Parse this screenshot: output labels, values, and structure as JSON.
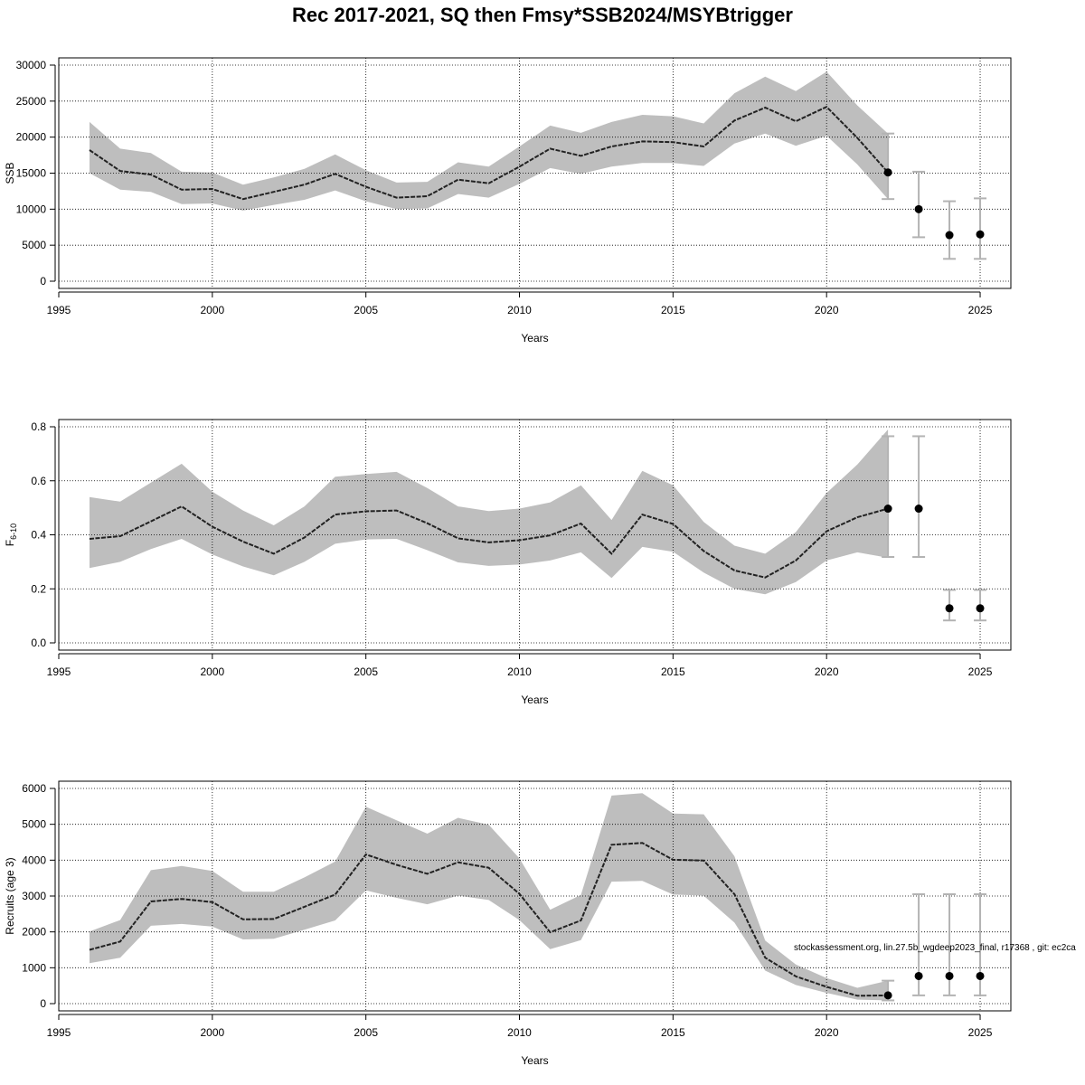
{
  "title": "Rec 2017-2021, SQ then Fmsy*SSB2024/MSYBtrigger",
  "footnote": "stockassessment.org, lin.27.5b_wgdeep2023_final, r17368 , git: ec2ca",
  "colors": {
    "band": "#bebebe",
    "errorbar": "#b3b3b3",
    "line": "#222222",
    "point": "#000000",
    "grid": "#000000"
  },
  "chart_data": [
    {
      "type": "line",
      "ylabel": "SSB",
      "xlabel": "Years",
      "xlim": [
        1995,
        2026
      ],
      "ylim": [
        0,
        30000
      ],
      "xticks": [
        1995,
        2000,
        2005,
        2010,
        2015,
        2020,
        2025
      ],
      "yticks": [
        0,
        5000,
        10000,
        15000,
        20000,
        25000,
        30000
      ],
      "x": [
        1996,
        1997,
        1998,
        1999,
        2000,
        2001,
        2002,
        2003,
        2004,
        2005,
        2006,
        2007,
        2008,
        2009,
        2010,
        2011,
        2012,
        2013,
        2014,
        2015,
        2016,
        2017,
        2018,
        2019,
        2020,
        2021,
        2022
      ],
      "estimate": [
        18200,
        15300,
        14800,
        12700,
        12800,
        11400,
        12400,
        13400,
        14900,
        13100,
        11600,
        11800,
        14100,
        13600,
        15900,
        18400,
        17400,
        18700,
        19400,
        19300,
        18700,
        22300,
        24100,
        22200,
        24200,
        19900,
        15100
      ],
      "lower": [
        15000,
        12700,
        12400,
        10700,
        10800,
        9800,
        10600,
        11300,
        12600,
        11100,
        10000,
        10100,
        12100,
        11600,
        13500,
        15700,
        14900,
        15900,
        16400,
        16400,
        16000,
        19100,
        20500,
        18800,
        20200,
        16200,
        11400
      ],
      "upper": [
        22100,
        18400,
        17800,
        15200,
        15100,
        13400,
        14400,
        15600,
        17600,
        15400,
        13700,
        13800,
        16500,
        15900,
        18700,
        21600,
        20600,
        22100,
        23100,
        22900,
        21900,
        26100,
        28400,
        26400,
        29100,
        24400,
        20500
      ],
      "forecast": [
        {
          "x": 2022,
          "y": 15100,
          "lower": 11400,
          "upper": 20500
        },
        {
          "x": 2023,
          "y": 10000,
          "lower": 6100,
          "upper": 15200
        },
        {
          "x": 2024,
          "y": 6400,
          "lower": 3100,
          "upper": 11100
        },
        {
          "x": 2025,
          "y": 6500,
          "lower": 3100,
          "upper": 11500
        }
      ]
    },
    {
      "type": "line",
      "ylabel": "F",
      "ylabel_sub": "6-10",
      "xlabel": "Years",
      "xlim": [
        1995,
        2026
      ],
      "ylim": [
        0,
        0.8
      ],
      "xticks": [
        1995,
        2000,
        2005,
        2010,
        2015,
        2020,
        2025
      ],
      "yticks": [
        0.0,
        0.2,
        0.4,
        0.6,
        0.8
      ],
      "ytick_labels": [
        "0.0",
        "0.2",
        "0.4",
        "0.6",
        "0.8"
      ],
      "x": [
        1996,
        1997,
        1998,
        1999,
        2000,
        2001,
        2002,
        2003,
        2004,
        2005,
        2006,
        2007,
        2008,
        2009,
        2010,
        2011,
        2012,
        2013,
        2014,
        2015,
        2016,
        2017,
        2018,
        2019,
        2020,
        2021,
        2022
      ],
      "estimate": [
        0.385,
        0.395,
        0.45,
        0.505,
        0.43,
        0.375,
        0.33,
        0.39,
        0.475,
        0.487,
        0.49,
        0.443,
        0.387,
        0.372,
        0.38,
        0.398,
        0.442,
        0.33,
        0.475,
        0.44,
        0.34,
        0.268,
        0.242,
        0.305,
        0.413,
        0.465,
        0.497
      ],
      "lower": [
        0.277,
        0.3,
        0.347,
        0.385,
        0.327,
        0.283,
        0.25,
        0.3,
        0.367,
        0.383,
        0.385,
        0.343,
        0.298,
        0.285,
        0.29,
        0.305,
        0.335,
        0.24,
        0.355,
        0.337,
        0.26,
        0.2,
        0.18,
        0.225,
        0.305,
        0.335,
        0.315
      ],
      "upper": [
        0.54,
        0.523,
        0.593,
        0.663,
        0.56,
        0.49,
        0.435,
        0.505,
        0.615,
        0.625,
        0.633,
        0.573,
        0.505,
        0.488,
        0.497,
        0.52,
        0.583,
        0.455,
        0.637,
        0.583,
        0.448,
        0.36,
        0.33,
        0.41,
        0.555,
        0.66,
        0.79
      ],
      "forecast": [
        {
          "x": 2022,
          "y": 0.497,
          "lower": 0.318,
          "upper": 0.765
        },
        {
          "x": 2023,
          "y": 0.497,
          "lower": 0.318,
          "upper": 0.765
        },
        {
          "x": 2024,
          "y": 0.128,
          "lower": 0.083,
          "upper": 0.196
        },
        {
          "x": 2025,
          "y": 0.128,
          "lower": 0.083,
          "upper": 0.196
        }
      ]
    },
    {
      "type": "line",
      "ylabel": "Recruits (age 3)",
      "xlabel": "Years",
      "xlim": [
        1995,
        2026
      ],
      "ylim": [
        0,
        6000
      ],
      "xticks": [
        1995,
        2000,
        2005,
        2010,
        2015,
        2020,
        2025
      ],
      "yticks": [
        0,
        1000,
        2000,
        3000,
        4000,
        5000,
        6000
      ],
      "x": [
        1996,
        1997,
        1998,
        1999,
        2000,
        2001,
        2002,
        2003,
        2004,
        2005,
        2006,
        2007,
        2008,
        2009,
        2010,
        2011,
        2012,
        2013,
        2014,
        2015,
        2016,
        2017,
        2018,
        2019,
        2020,
        2021,
        2022
      ],
      "estimate": [
        1500,
        1730,
        2850,
        2920,
        2830,
        2350,
        2360,
        2700,
        3040,
        4160,
        3870,
        3620,
        3940,
        3790,
        3060,
        1990,
        2320,
        4430,
        4480,
        4010,
        3990,
        3050,
        1280,
        760,
        470,
        220,
        230
      ],
      "lower": [
        1130,
        1280,
        2170,
        2220,
        2150,
        1790,
        1810,
        2060,
        2320,
        3160,
        2950,
        2770,
        3010,
        2890,
        2330,
        1520,
        1770,
        3400,
        3420,
        3040,
        3010,
        2260,
        920,
        520,
        300,
        110,
        90
      ],
      "upper": [
        2010,
        2330,
        3720,
        3840,
        3700,
        3120,
        3120,
        3520,
        3960,
        5490,
        5110,
        4740,
        5180,
        4990,
        4050,
        2620,
        3030,
        5800,
        5870,
        5300,
        5280,
        4110,
        1760,
        1090,
        710,
        440,
        640
      ],
      "forecast": [
        {
          "x": 2022,
          "y": 230,
          "lower": 90,
          "upper": 640
        },
        {
          "x": 2023,
          "y": 770,
          "lower": 230,
          "upper": 3050
        },
        {
          "x": 2024,
          "y": 770,
          "lower": 230,
          "upper": 3050
        },
        {
          "x": 2025,
          "y": 770,
          "lower": 230,
          "upper": 3050
        }
      ]
    }
  ]
}
